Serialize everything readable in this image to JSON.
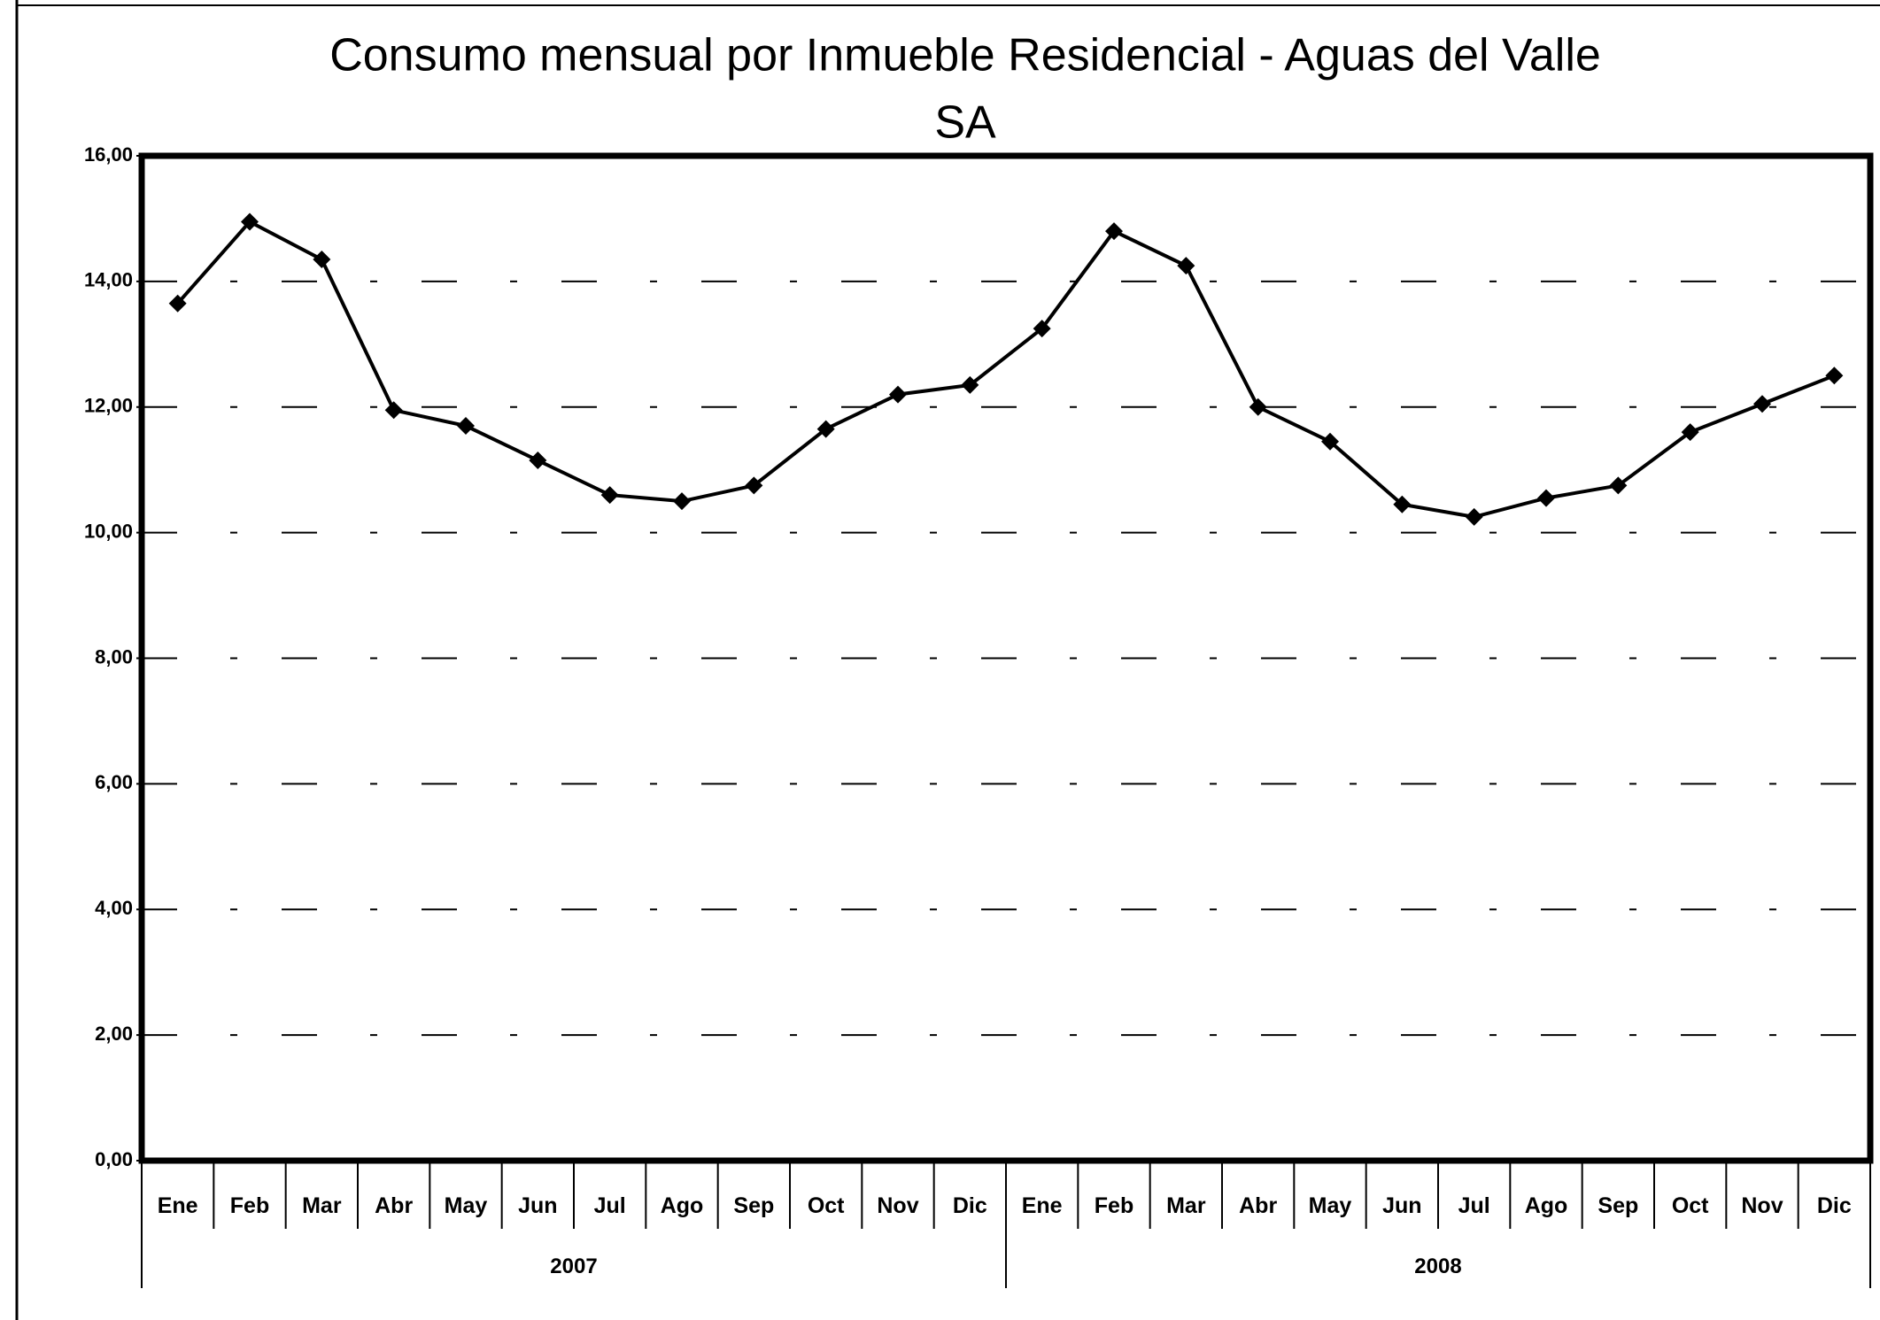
{
  "chart_data": {
    "type": "line",
    "title": [
      "Consumo mensual por Inmueble Residencial - Aguas del Valle",
      "SA"
    ],
    "categories": [
      "Ene",
      "Feb",
      "Mar",
      "Abr",
      "May",
      "Jun",
      "Jul",
      "Ago",
      "Sep",
      "Oct",
      "Nov",
      "Dic",
      "Ene",
      "Feb",
      "Mar",
      "Abr",
      "May",
      "Jun",
      "Jul",
      "Ago",
      "Sep",
      "Oct",
      "Nov",
      "Dic"
    ],
    "years": [
      "2007",
      "2008"
    ],
    "series": [
      {
        "color": "#000000",
        "values": [
          13.65,
          14.95,
          14.35,
          11.95,
          11.7,
          11.15,
          10.6,
          10.5,
          10.75,
          11.65,
          12.2,
          12.35,
          13.25,
          14.8,
          14.25,
          12.0,
          11.45,
          10.45,
          10.25,
          10.55,
          10.75,
          11.6,
          12.05,
          12.5
        ]
      }
    ],
    "ylim": [
      0,
      16
    ],
    "yticks": [
      {
        "value": 0,
        "label": "0,00"
      },
      {
        "value": 2,
        "label": "2,00"
      },
      {
        "value": 4,
        "label": "4,00"
      },
      {
        "value": 6,
        "label": "6,00"
      },
      {
        "value": 8,
        "label": "8,00"
      },
      {
        "value": 10,
        "label": "10,00"
      },
      {
        "value": 12,
        "label": "12,00"
      },
      {
        "value": 14,
        "label": "14,00"
      },
      {
        "value": 16,
        "label": "16,00"
      }
    ],
    "grid": true
  }
}
